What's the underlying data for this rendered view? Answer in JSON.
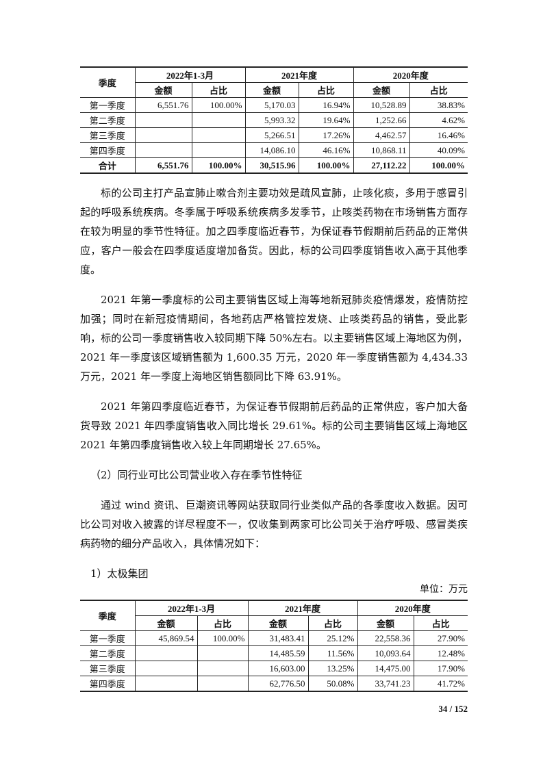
{
  "headers": {
    "quarter": "季度",
    "periods": [
      "2022年1-3月",
      "2021年度",
      "2020年度"
    ],
    "amount": "金额",
    "ratio": "占比"
  },
  "table1": {
    "rows": [
      [
        "第一季度",
        "6,551.76",
        "100.00%",
        "5,170.03",
        "16.94%",
        "10,528.89",
        "38.83%"
      ],
      [
        "第二季度",
        "",
        "",
        "5,993.32",
        "19.64%",
        "1,252.66",
        "4.62%"
      ],
      [
        "第三季度",
        "",
        "",
        "5,266.51",
        "17.26%",
        "4,462.57",
        "16.46%"
      ],
      [
        "第四季度",
        "",
        "",
        "14,086.10",
        "46.16%",
        "10,868.11",
        "40.09%"
      ],
      [
        "合计",
        "6,551.76",
        "100.00%",
        "30,515.96",
        "100.00%",
        "27,112.22",
        "100.00%"
      ]
    ]
  },
  "paragraphs": [
    "标的公司主打产品宣肺止嗽合剂主要功效是疏风宣肺，止咳化痰，多用于感冒引起的呼吸系统疾病。冬季属于呼吸系统疾病多发季节，止咳类药物在市场销售方面存在较为明显的季节性特征。加之四季度临近春节，为保证春节假期前后药品的正常供应，客户一般会在四季度适度增加备货。因此，标的公司四季度销售收入高于其他季度。",
    "2021 年第一季度标的公司主要销售区域上海等地新冠肺炎疫情爆发，疫情防控加强；同时在新冠疫情期间，各地药店严格管控发烧、止咳类药品的销售，受此影响，标的公司一季度销售收入较同期下降 50%左右。以主要销售区域上海地区为例，2021 年一季度该区域销售额为 1,600.35 万元，2020 年一季度销售额为 4,434.33 万元，2021 年一季度上海地区销售额同比下降 63.91%。",
    "2021 年第四季度临近春节，为保证春节假期前后药品的正常供应，客户加大备货导致 2021 年四季度销售收入同比增长 29.61%。标的公司主要销售区域上海地区 2021 年第四季度销售收入较上年同期增长 27.65%。",
    "（2）同行业可比公司营业收入存在季节性特征",
    "通过 wind 资讯、巨潮资讯等网站获取同行业类似产品的各季度收入数据。因可比公司对收入披露的详尽程度不一，仅收集到两家可比公司关于治疗呼吸、感冒类疾病药物的细分产品收入，具体情况如下：",
    "1）太极集团"
  ],
  "unit": "单位：万元",
  "table2": {
    "rows": [
      [
        "第一季度",
        "45,869.54",
        "100.00%",
        "31,483.41",
        "25.12%",
        "22,558.36",
        "27.90%"
      ],
      [
        "第二季度",
        "",
        "",
        "14,485.59",
        "11.56%",
        "10,093.64",
        "12.48%"
      ],
      [
        "第三季度",
        "",
        "",
        "16,603.00",
        "13.25%",
        "14,475.00",
        "17.90%"
      ],
      [
        "第四季度",
        "",
        "",
        "62,776.50",
        "50.08%",
        "33,741.23",
        "41.72%"
      ]
    ]
  },
  "page_number": "34 / 152"
}
